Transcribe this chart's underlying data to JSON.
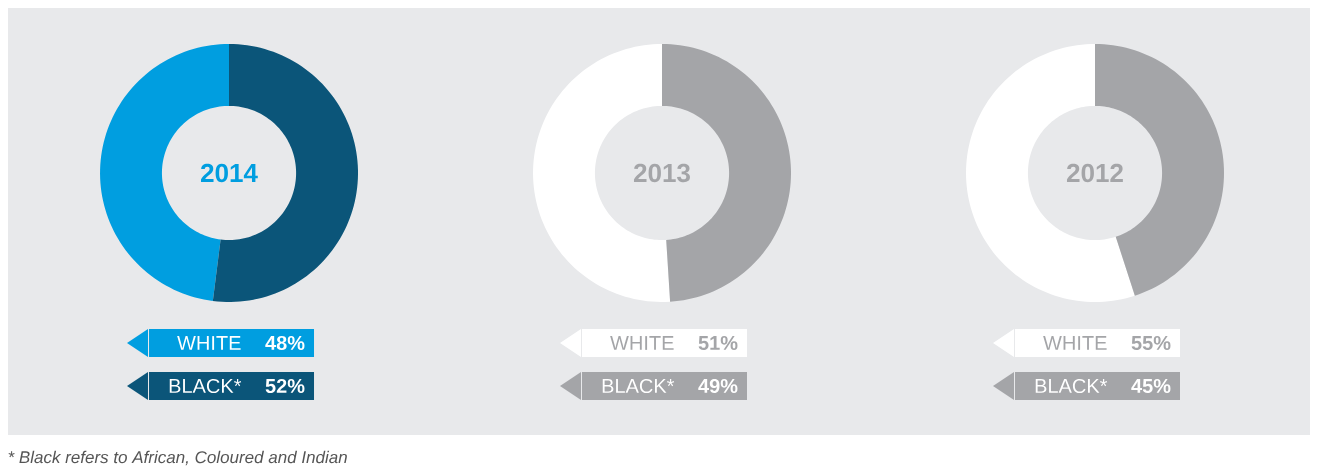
{
  "chart_data": [
    {
      "type": "donut",
      "title": "2014",
      "categories": [
        "WHITE",
        "BLACK*"
      ],
      "values": [
        48,
        52
      ],
      "value_labels": [
        "48%",
        "52%"
      ],
      "colors": [
        "#009ee0",
        "#0b5579"
      ],
      "legend": "bottom",
      "annotations": [
        "* Black refers to African, Coloured and Indian"
      ]
    },
    {
      "type": "donut",
      "title": "2013",
      "categories": [
        "WHITE",
        "BLACK*"
      ],
      "values": [
        51,
        49
      ],
      "value_labels": [
        "51%",
        "49%"
      ],
      "colors": [
        "#ffffff",
        "#a4a5a8"
      ],
      "legend": "bottom"
    },
    {
      "type": "donut",
      "title": "2012",
      "categories": [
        "WHITE",
        "BLACK*"
      ],
      "values": [
        55,
        45
      ],
      "value_labels": [
        "55%",
        "45%"
      ],
      "colors": [
        "#ffffff",
        "#a4a5a8"
      ],
      "legend": "bottom"
    }
  ]
}
